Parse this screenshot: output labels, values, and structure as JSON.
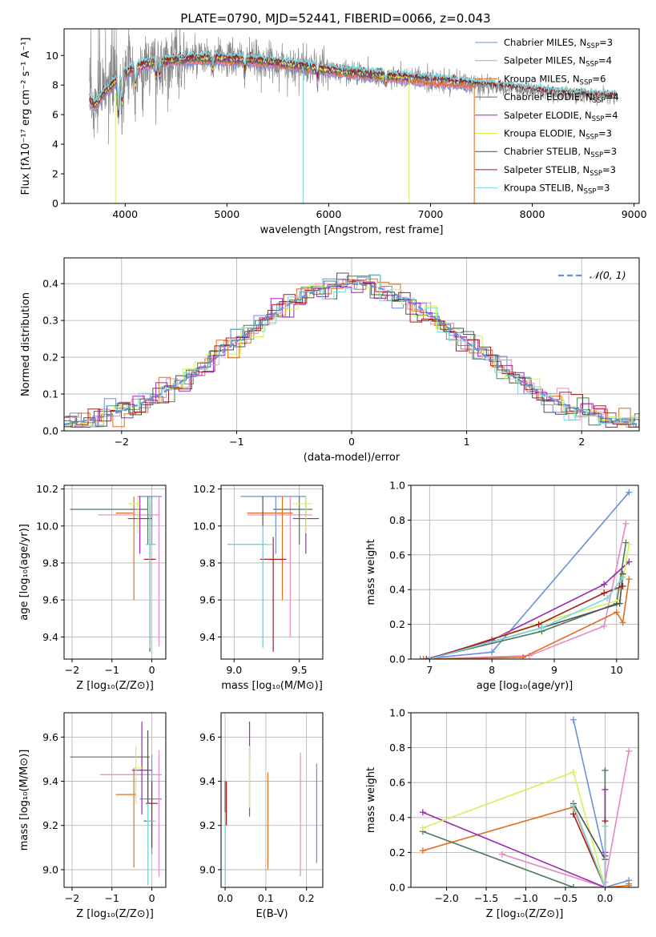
{
  "colors": {
    "chabrier_miles": "#6a8fdc",
    "salpeter_miles": "#e58ac4",
    "kroupa_miles": "#e07020",
    "chabrier_elodie": "#4f7a55",
    "salpeter_elodie": "#9a28b4",
    "kroupa_elodie": "#d4f05a",
    "chabrier_stelib": "#505050",
    "salpeter_stelib": "#aa1c1c",
    "kroupa_stelib": "#7ad8e0",
    "data_gray": "#888888"
  },
  "chart_data": [
    {
      "id": "spectrum",
      "type": "line",
      "title": "PLATE=0790, MJD=52441, FIBERID=0066, z=0.043",
      "xlabel": "wavelength [Angstrom, rest frame]",
      "ylabel": "Flux [fλ10⁻¹⁷ erg cm⁻² s⁻¹ A⁻¹]",
      "xlim": [
        3400,
        9050
      ],
      "ylim": [
        0,
        11.8
      ],
      "xticks": [
        "4000",
        "5000",
        "6000",
        "7000",
        "8000",
        "9000"
      ],
      "yticks": [
        "0",
        "2",
        "4",
        "6",
        "8",
        "10"
      ],
      "legend_position": "upper-right",
      "grid": false,
      "legend": [
        {
          "label": "Chabrier MILES, N",
          "sub": "SSP",
          "suffix": "=3",
          "color_key": "chabrier_miles"
        },
        {
          "label": "Salpeter MILES, N",
          "sub": "SSP",
          "suffix": "=4",
          "color_key": "salpeter_miles"
        },
        {
          "label": "Kroupa MILES, N",
          "sub": "SSP",
          "suffix": "=6",
          "color_key": "kroupa_miles"
        },
        {
          "label": "Chabrier ELODIE, N",
          "sub": "SSP",
          "suffix": "=4",
          "color_key": "chabrier_elodie"
        },
        {
          "label": "Salpeter ELODIE, N",
          "sub": "SSP",
          "suffix": "=4",
          "color_key": "salpeter_elodie"
        },
        {
          "label": "Kroupa ELODIE, N",
          "sub": "SSP",
          "suffix": "=3",
          "color_key": "kroupa_elodie"
        },
        {
          "label": "Chabrier STELIB, N",
          "sub": "SSP",
          "suffix": "=3",
          "color_key": "chabrier_stelib"
        },
        {
          "label": "Salpeter STELIB, N",
          "sub": "SSP",
          "suffix": "=3",
          "color_key": "salpeter_stelib"
        },
        {
          "label": "Kroupa STELIB, N",
          "sub": "SSP",
          "suffix": "=3",
          "color_key": "kroupa_stelib"
        }
      ],
      "continuum": {
        "x": [
          3650,
          3700,
          3800,
          3900,
          4000,
          4100,
          4200,
          4300,
          4400,
          4500,
          4600,
          4800,
          5000,
          5200,
          5400,
          5600,
          5800,
          6000,
          6200,
          6400,
          6600,
          6800,
          7000,
          7200,
          7400,
          7600,
          7800,
          8000,
          8200,
          8400,
          8600,
          8800
        ],
        "y": [
          7.0,
          6.6,
          7.5,
          8.2,
          8.8,
          9.1,
          9.4,
          9.5,
          9.6,
          9.7,
          9.75,
          9.8,
          9.75,
          9.7,
          9.55,
          9.4,
          9.2,
          9.0,
          8.85,
          8.7,
          8.55,
          8.45,
          8.3,
          8.2,
          8.05,
          7.9,
          7.75,
          7.6,
          7.45,
          7.35,
          7.25,
          7.2
        ]
      }
    },
    {
      "id": "residuals",
      "type": "histogram",
      "xlabel": "(data-model)/error",
      "ylabel": "Normed distribution",
      "xlim": [
        -2.5,
        2.5
      ],
      "ylim": [
        0,
        0.47
      ],
      "xticks": [
        "−2",
        "−1",
        "0",
        "1",
        "2"
      ],
      "yticks": [
        "0.0",
        "0.1",
        "0.2",
        "0.3",
        "0.4"
      ],
      "grid": true,
      "legend_label": "𝒩(0, 1)",
      "legend_position": "upper-right",
      "reference_curve": {
        "mean": 0,
        "sigma": 1
      }
    },
    {
      "id": "age_vs_Z",
      "type": "errorbar",
      "xlabel": "Z [log₁₀(Z/Z⊙)]",
      "ylabel": "age  [log₁₀(age/yr)]",
      "xlim": [
        -2.2,
        0.35
      ],
      "ylim": [
        9.28,
        10.22
      ],
      "xticks": [
        "−2",
        "−1",
        "0"
      ],
      "yticks": [
        "9.4",
        "9.6",
        "9.8",
        "10.0",
        "10.2"
      ],
      "grid": true,
      "points": [
        {
          "c": "chabrier_miles",
          "x": 0.0,
          "xl": -0.35,
          "xh": 0.25,
          "y": 10.16,
          "yl": 9.9,
          "yh": 10.16
        },
        {
          "c": "salpeter_miles",
          "x": 0.18,
          "xl": -1.35,
          "xh": 0.18,
          "y": 10.06,
          "yl": 9.35,
          "yh": 10.16
        },
        {
          "c": "kroupa_miles",
          "x": -0.45,
          "xl": -0.9,
          "xh": -0.45,
          "y": 10.07,
          "yl": 9.6,
          "yh": 10.16
        },
        {
          "c": "chabrier_elodie",
          "x": -0.1,
          "xl": -2.05,
          "xh": -0.1,
          "y": 10.09,
          "yl": 9.9,
          "yh": 10.16
        },
        {
          "c": "salpeter_elodie",
          "x": -0.3,
          "xl": -0.6,
          "xh": 0.0,
          "y": 10.04,
          "yl": 9.85,
          "yh": 10.16
        },
        {
          "c": "kroupa_elodie",
          "x": -0.35,
          "xl": -0.6,
          "xh": -0.3,
          "y": 10.12,
          "yl": 9.96,
          "yh": 10.16
        },
        {
          "c": "chabrier_stelib",
          "x": -0.05,
          "xl": -0.15,
          "xh": 0.1,
          "y": 9.9,
          "yl": 9.32,
          "yh": 10.16
        },
        {
          "c": "salpeter_stelib",
          "x": -0.05,
          "xl": -0.2,
          "xh": 0.1,
          "y": 9.82,
          "yl": 9.36,
          "yh": 10.12
        },
        {
          "c": "kroupa_stelib",
          "x": -0.05,
          "xl": -0.15,
          "xh": 0.1,
          "y": 9.9,
          "yl": 9.34,
          "yh": 10.16
        }
      ]
    },
    {
      "id": "age_vs_mass",
      "type": "errorbar",
      "xlabel": "mass [log₁₀(M/M⊙)]",
      "ylabel": "",
      "xlim": [
        8.9,
        9.68
      ],
      "ylim": [
        9.28,
        10.22
      ],
      "xticks": [
        "9.0",
        "9.5"
      ],
      "yticks": [
        "9.4",
        "9.6",
        "9.8",
        "10.0",
        "10.2"
      ],
      "grid": true,
      "points": [
        {
          "c": "chabrier_miles",
          "x": 9.32,
          "xl": 9.05,
          "xh": 9.55,
          "y": 10.16,
          "yl": 9.85,
          "yh": 10.16
        },
        {
          "c": "salpeter_miles",
          "x": 9.43,
          "xl": 9.1,
          "xh": 9.6,
          "y": 10.06,
          "yl": 9.4,
          "yh": 10.16
        },
        {
          "c": "kroupa_miles",
          "x": 9.37,
          "xl": 9.1,
          "xh": 9.45,
          "y": 10.07,
          "yl": 9.6,
          "yh": 10.16
        },
        {
          "c": "chabrier_elodie",
          "x": 9.5,
          "xl": 9.3,
          "xh": 9.6,
          "y": 10.09,
          "yl": 9.9,
          "yh": 10.16
        },
        {
          "c": "salpeter_elodie",
          "x": 9.55,
          "xl": 9.45,
          "xh": 9.65,
          "y": 10.04,
          "yl": 9.85,
          "yh": 10.16
        },
        {
          "c": "kroupa_elodie",
          "x": 9.55,
          "xl": 9.45,
          "xh": 9.6,
          "y": 10.12,
          "yl": 9.96,
          "yh": 10.16
        },
        {
          "c": "chabrier_stelib",
          "x": 9.22,
          "xl": 8.95,
          "xh": 9.25,
          "y": 9.9,
          "yl": 9.35,
          "yh": 10.16
        },
        {
          "c": "salpeter_stelib",
          "x": 9.3,
          "xl": 9.2,
          "xh": 9.4,
          "y": 9.82,
          "yl": 9.32,
          "yh": 9.94
        },
        {
          "c": "kroupa_stelib",
          "x": 9.22,
          "xl": 8.95,
          "xh": 9.3,
          "y": 9.9,
          "yl": 9.34,
          "yh": 10.0
        }
      ]
    },
    {
      "id": "weight_vs_age",
      "type": "line",
      "xlabel": "age  [log₁₀(age/yr)]",
      "ylabel": "mass weight",
      "xlim": [
        6.7,
        10.35
      ],
      "ylim": [
        0,
        1.0
      ],
      "xticks": [
        "7",
        "8",
        "9",
        "10"
      ],
      "yticks": [
        "0.0",
        "0.2",
        "0.4",
        "0.6",
        "0.8",
        "1.0"
      ],
      "grid": true,
      "series": [
        {
          "c": "chabrier_miles",
          "x": [
            6.85,
            8.0,
            10.2
          ],
          "y": [
            0.0,
            0.04,
            0.96
          ]
        },
        {
          "c": "salpeter_miles",
          "x": [
            6.9,
            8.6,
            9.8,
            10.15
          ],
          "y": [
            0.0,
            0.02,
            0.19,
            0.78
          ]
        },
        {
          "c": "kroupa_miles",
          "x": [
            6.9,
            8.5,
            10.0,
            10.1,
            10.2
          ],
          "y": [
            0.0,
            0.01,
            0.27,
            0.21,
            0.46
          ]
        },
        {
          "c": "chabrier_elodie",
          "x": [
            6.95,
            8.8,
            10.0,
            10.15
          ],
          "y": [
            0.0,
            0.16,
            0.32,
            0.67
          ]
        },
        {
          "c": "salpeter_elodie",
          "x": [
            6.95,
            8.0,
            9.8,
            10.2
          ],
          "y": [
            0.0,
            0.11,
            0.43,
            0.56
          ]
        },
        {
          "c": "kroupa_elodie",
          "x": [
            7.0,
            8.8,
            10.05,
            10.2
          ],
          "y": [
            0.0,
            0.21,
            0.34,
            0.66
          ]
        },
        {
          "c": "chabrier_stelib",
          "x": [
            7.0,
            8.8,
            10.05,
            10.1
          ],
          "y": [
            0.0,
            0.18,
            0.32,
            0.49
          ]
        },
        {
          "c": "salpeter_stelib",
          "x": [
            7.0,
            8.75,
            9.8,
            10.1
          ],
          "y": [
            0.0,
            0.2,
            0.38,
            0.42
          ]
        },
        {
          "c": "kroupa_stelib",
          "x": [
            7.0,
            8.8,
            9.85,
            10.1
          ],
          "y": [
            0.0,
            0.18,
            0.35,
            0.47
          ]
        }
      ]
    },
    {
      "id": "mass_vs_Z",
      "type": "errorbar",
      "xlabel": "Z [log₁₀(Z/Z⊙)]",
      "ylabel": "mass [log₁₀(M/M⊙)]",
      "xlim": [
        -2.2,
        0.35
      ],
      "ylim": [
        8.92,
        9.71
      ],
      "xticks": [
        "−2",
        "−1",
        "0"
      ],
      "yticks": [
        "9.0",
        "9.2",
        "9.4",
        "9.6"
      ],
      "grid": true,
      "points": [
        {
          "c": "chabrier_miles",
          "x": 0.0,
          "xl": -0.3,
          "xh": 0.25,
          "y": 9.32,
          "yl": 9.07,
          "yh": 9.52
        },
        {
          "c": "salpeter_miles",
          "x": 0.18,
          "xl": -1.3,
          "xh": 0.25,
          "y": 9.43,
          "yl": 8.97,
          "yh": 9.54
        },
        {
          "c": "kroupa_miles",
          "x": -0.45,
          "xl": -0.9,
          "xh": -0.4,
          "y": 9.34,
          "yl": 9.01,
          "yh": 9.46
        },
        {
          "c": "chabrier_elodie",
          "x": -0.1,
          "xl": -2.05,
          "xh": -0.05,
          "y": 9.51,
          "yl": 9.3,
          "yh": 9.51
        },
        {
          "c": "salpeter_elodie",
          "x": -0.25,
          "xl": -0.5,
          "xh": 0.0,
          "y": 9.45,
          "yl": 9.25,
          "yh": 9.67
        },
        {
          "c": "kroupa_elodie",
          "x": -0.4,
          "xl": -0.45,
          "xh": -0.2,
          "y": 9.46,
          "yl": 9.3,
          "yh": 9.56
        },
        {
          "c": "chabrier_stelib",
          "x": -0.1,
          "xl": -0.2,
          "xh": 0.05,
          "y": 9.22,
          "yl": 8.93,
          "yh": 9.63
        },
        {
          "c": "salpeter_stelib",
          "x": 0.0,
          "xl": -0.15,
          "xh": 0.15,
          "y": 9.3,
          "yl": 9.1,
          "yh": 9.4
        },
        {
          "c": "kroupa_stelib",
          "x": -0.1,
          "xl": -0.15,
          "xh": 0.1,
          "y": 9.22,
          "yl": 8.93,
          "yh": 9.3
        }
      ]
    },
    {
      "id": "mass_vs_ebv",
      "type": "errorbar",
      "xlabel": "E(B-V)",
      "ylabel": "",
      "xlim": [
        -0.01,
        0.24
      ],
      "ylim": [
        8.92,
        9.71
      ],
      "xticks": [
        "0.0",
        "0.1",
        "0.2"
      ],
      "yticks": [
        "9.0",
        "9.2",
        "9.4",
        "9.6"
      ],
      "grid": true,
      "points": [
        {
          "c": "chabrier_miles",
          "x": 0.225,
          "xl": 0.225,
          "xh": 0.225,
          "y": 9.32,
          "yl": 9.03,
          "yh": 9.48
        },
        {
          "c": "salpeter_miles",
          "x": 0.185,
          "xl": 0.185,
          "xh": 0.185,
          "y": 9.43,
          "yl": 8.97,
          "yh": 9.53
        },
        {
          "c": "kroupa_miles",
          "x": 0.105,
          "xl": 0.105,
          "xh": 0.105,
          "y": 9.34,
          "yl": 9.0,
          "yh": 9.44
        },
        {
          "c": "chabrier_elodie",
          "x": 0.06,
          "xl": 0.06,
          "xh": 0.06,
          "y": 9.51,
          "yl": 9.24,
          "yh": 9.56
        },
        {
          "c": "salpeter_elodie",
          "x": 0.06,
          "xl": 0.06,
          "xh": 0.06,
          "y": 9.6,
          "yl": 9.5,
          "yh": 9.67
        },
        {
          "c": "kroupa_elodie",
          "x": 0.06,
          "xl": 0.06,
          "xh": 0.06,
          "y": 9.46,
          "yl": 9.28,
          "yh": 9.56
        },
        {
          "c": "chabrier_stelib",
          "x": 0.0,
          "xl": 0.0,
          "xh": 0.0,
          "y": 9.22,
          "yl": 8.93,
          "yh": 9.4
        },
        {
          "c": "salpeter_stelib",
          "x": 0.003,
          "xl": 0.003,
          "xh": 0.003,
          "y": 9.3,
          "yl": 9.2,
          "yh": 9.4
        },
        {
          "c": "kroupa_stelib",
          "x": 0.0,
          "xl": 0.0,
          "xh": 0.0,
          "y": 9.1,
          "yl": 8.93,
          "yh": 9.26
        }
      ]
    },
    {
      "id": "weight_vs_Z",
      "type": "line",
      "xlabel": "Z [log₁₀(Z/Z⊙)]",
      "ylabel": "mass weight",
      "xlim": [
        -2.45,
        0.42
      ],
      "ylim": [
        0,
        1.0
      ],
      "xticks": [
        "−2.0",
        "−1.5",
        "−1.0",
        "−0.5",
        "0.0"
      ],
      "yticks": [
        "0.0",
        "0.2",
        "0.4",
        "0.6",
        "0.8",
        "1.0"
      ],
      "grid": true,
      "series": [
        {
          "c": "chabrier_miles",
          "x": [
            -0.4,
            0.0,
            0.0,
            0.3
          ],
          "y": [
            0.96,
            0.16,
            0.0,
            0.04
          ]
        },
        {
          "c": "salpeter_miles",
          "x": [
            -1.3,
            0.0,
            0.0,
            0.3
          ],
          "y": [
            0.19,
            0.0,
            0.03,
            0.78
          ]
        },
        {
          "c": "kroupa_miles",
          "x": [
            -2.3,
            -0.4,
            0.0,
            0.3,
            0.3
          ],
          "y": [
            0.21,
            0.46,
            0.0,
            0.01,
            0.02
          ]
        },
        {
          "c": "chabrier_elodie",
          "x": [
            -2.3,
            -0.4,
            0.0,
            0.0
          ],
          "y": [
            0.32,
            0.0,
            0.0,
            0.67
          ]
        },
        {
          "c": "salpeter_elodie",
          "x": [
            -2.3,
            0.0,
            0.0,
            0.0
          ],
          "y": [
            0.43,
            0.0,
            0.2,
            0.56
          ]
        },
        {
          "c": "kroupa_elodie",
          "x": [
            -2.3,
            -0.4,
            0.0
          ],
          "y": [
            0.34,
            0.66,
            0.0
          ]
        },
        {
          "c": "chabrier_stelib",
          "x": [
            -0.4,
            0.0,
            0.0
          ],
          "y": [
            0.48,
            0.16,
            0.18
          ]
        },
        {
          "c": "salpeter_stelib",
          "x": [
            -0.4,
            0.0,
            0.0
          ],
          "y": [
            0.42,
            0.0,
            0.38
          ]
        },
        {
          "c": "kroupa_stelib",
          "x": [
            -0.4,
            0.0,
            0.0
          ],
          "y": [
            0.47,
            0.0,
            0.35
          ]
        }
      ]
    }
  ]
}
